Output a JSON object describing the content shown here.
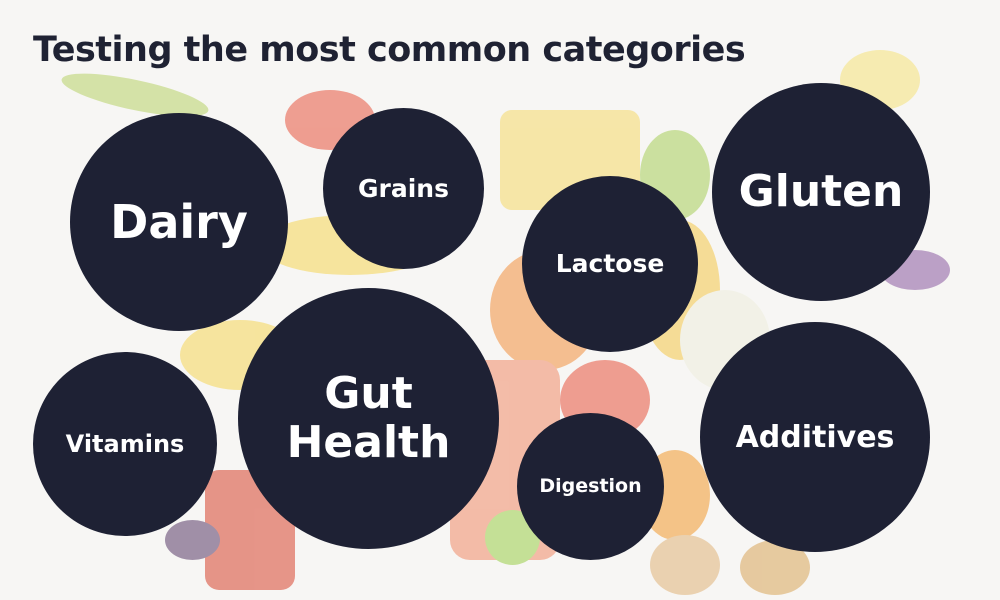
{
  "title": "Testing the most common categories",
  "colors": {
    "circle": "#1e2134",
    "title": "#1f2233",
    "text": "#ffffff"
  },
  "categories": [
    {
      "label": "Dairy"
    },
    {
      "label": "Grains"
    },
    {
      "label": "Lactose"
    },
    {
      "label": "Gluten"
    },
    {
      "label": "Vitamins"
    },
    {
      "label": "Gut Health"
    },
    {
      "label": "Digestion"
    },
    {
      "label": "Additives"
    }
  ]
}
